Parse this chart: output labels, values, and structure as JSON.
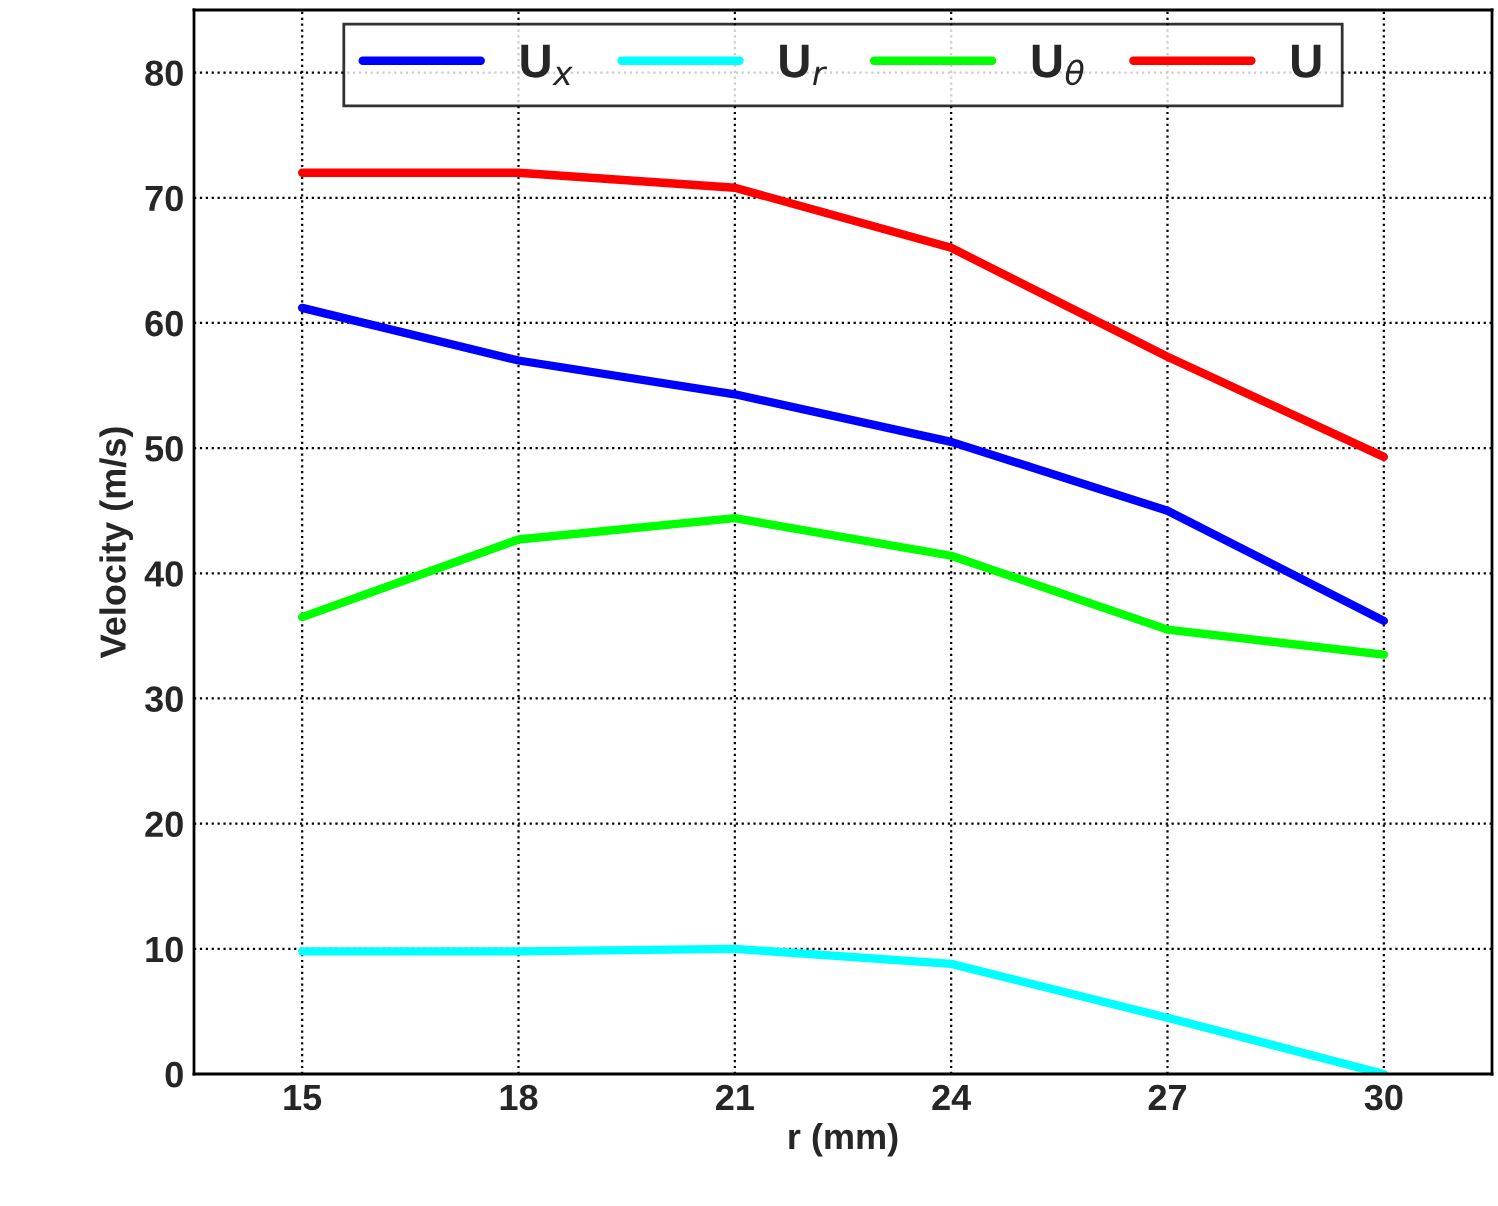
{
  "chart_data": {
    "type": "line",
    "xlabel": "r (mm)",
    "ylabel": "Velocity (m/s)",
    "x": [
      15,
      18,
      21,
      24,
      27,
      30
    ],
    "series": [
      {
        "name": "U$_{x}$",
        "color": "#0000ff",
        "values": [
          61.2,
          57,
          54.3,
          50.5,
          45,
          36.2
        ]
      },
      {
        "name": "U$_{r}$",
        "color": "#00ffff",
        "values": [
          9.8,
          9.8,
          10,
          8.8,
          4.5,
          0
        ]
      },
      {
        "name": "U$_{θ}$",
        "color": "#00ff00",
        "values": [
          36.5,
          42.7,
          44.4,
          41.4,
          35.5,
          33.5
        ]
      },
      {
        "name": "U",
        "color": "#ff0000",
        "values": [
          72,
          72,
          70.8,
          66,
          57.3,
          49.3
        ]
      }
    ],
    "xlim": [
      13.5,
      31.5
    ],
    "xticks": [
      15,
      18,
      21,
      24,
      27,
      30
    ],
    "ylim": [
      0,
      85
    ],
    "yticks": [
      0,
      10,
      20,
      30,
      40,
      50,
      60,
      70,
      80
    ],
    "grid": true,
    "legend": "top",
    "line_style": "solid",
    "marker": "none"
  }
}
